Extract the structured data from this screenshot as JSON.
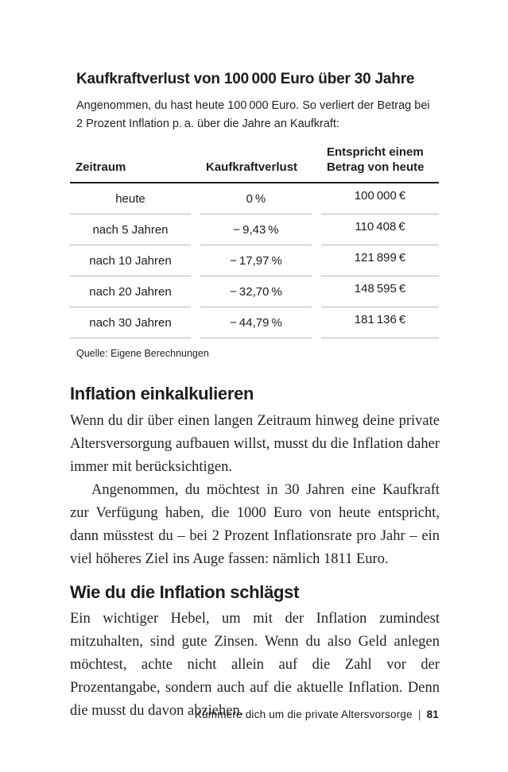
{
  "figure": {
    "title": "Kaufkraftverlust von 100 000 Euro über 30 Jahre",
    "intro": "Angenommen, du hast heute 100 000 Euro. So verliert der Betrag bei 2 Prozent Inflation p. a. über die Jahre an Kaufkraft:",
    "source": "Quelle: Eigene Berechnungen",
    "table": {
      "headers": [
        "Zeitraum",
        "Kaufkraftverlust",
        "Entspricht einem Betrag von heute"
      ],
      "rows": [
        [
          "heute",
          "0 %",
          "100 000 €"
        ],
        [
          "nach 5 Jahren",
          "− 9,43 %",
          "110 408 €"
        ],
        [
          "nach 10 Jahren",
          "− 17,97 %",
          "121 899 €"
        ],
        [
          "nach 20 Jahren",
          "− 32,70 %",
          "148 595 €"
        ],
        [
          "nach 30 Jahren",
          "− 44,79 %",
          "181 136 €"
        ]
      ]
    }
  },
  "chart_data": {
    "type": "table",
    "title": "Kaufkraftverlust von 100 000 Euro über 30 Jahre",
    "columns": [
      "Zeitraum",
      "Kaufkraftverlust",
      "Entspricht einem Betrag von heute"
    ],
    "rows": [
      {
        "zeitraum": "heute",
        "kaufkraftverlust_pct": 0,
        "betrag_eur": 100000
      },
      {
        "zeitraum": "nach 5 Jahren",
        "kaufkraftverlust_pct": -9.43,
        "betrag_eur": 110408
      },
      {
        "zeitraum": "nach 10 Jahren",
        "kaufkraftverlust_pct": -17.97,
        "betrag_eur": 121899
      },
      {
        "zeitraum": "nach 20 Jahren",
        "kaufkraftverlust_pct": -32.7,
        "betrag_eur": 148595
      },
      {
        "zeitraum": "nach 30 Jahren",
        "kaufkraftverlust_pct": -44.79,
        "betrag_eur": 181136
      }
    ]
  },
  "sections": [
    {
      "heading": "Inflation einkalkulieren",
      "paragraphs": [
        "Wenn du dir über einen langen Zeitraum hinweg deine private Altersversorgung aufbauen willst, musst du die Inflation daher immer mit berücksichtigen.",
        "Angenommen, du möchtest in 30 Jahren eine Kaufkraft zur Verfügung haben, die 1000 Euro von heute entspricht, dann müsstest du – bei 2 Prozent Inflationsrate pro Jahr – ein viel höheres Ziel ins Auge fassen: nämlich 1811 Euro."
      ]
    },
    {
      "heading": "Wie du die Inflation schlägst",
      "paragraphs": [
        "Ein wichtiger Hebel, um mit der Inflation zumindest mitzuhalten, sind gute Zinsen. Wenn du also Geld anlegen möchtest, achte nicht allein auf die Zahl vor der Prozentangabe, sondern auch auf die aktuelle Inflation. Denn die musst du davon abziehen."
      ]
    }
  ],
  "footer": {
    "running_title": "Kümmere dich um die private Altersvorsorge",
    "separator": "|",
    "page_number": "81"
  }
}
